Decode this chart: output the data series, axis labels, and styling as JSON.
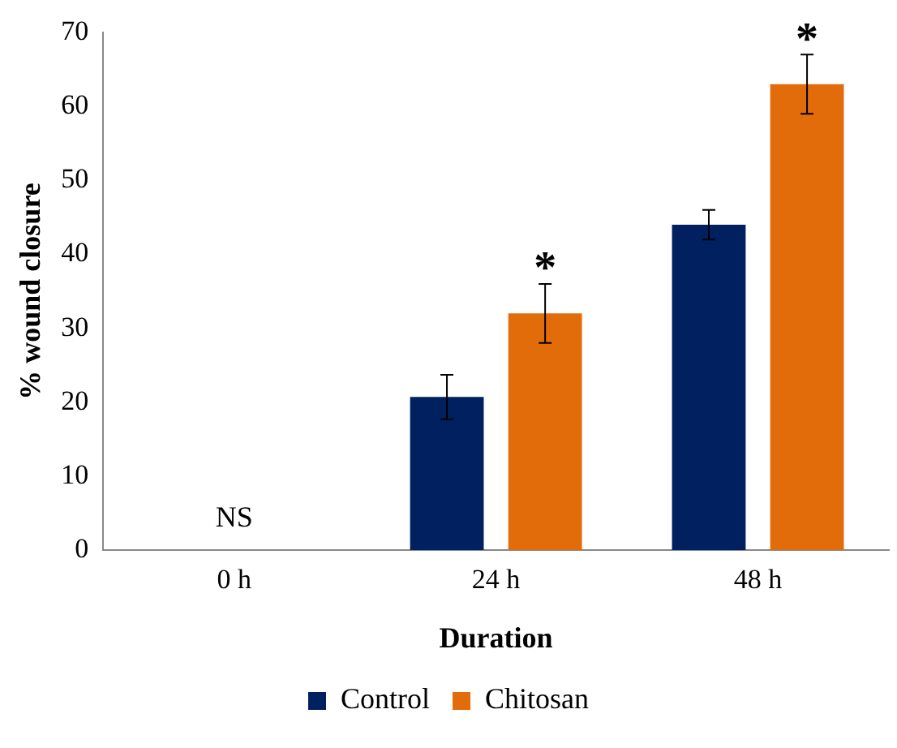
{
  "chart_data": {
    "type": "bar",
    "xlabel": "Duration",
    "ylabel": "% wound closure",
    "categories": [
      "0 h",
      "24 h",
      "48 h"
    ],
    "series": [
      {
        "name": "Control",
        "color": "#002060",
        "values": [
          0,
          20.7,
          44
        ],
        "errors": [
          null,
          3,
          2
        ]
      },
      {
        "name": "Chitosan",
        "color": "#e36c0a",
        "values": [
          0,
          32,
          63
        ],
        "errors": [
          null,
          4,
          4
        ]
      }
    ],
    "ylim": [
      0,
      70
    ],
    "yticks": [
      0,
      10,
      20,
      30,
      40,
      50,
      60,
      70
    ],
    "grid": false,
    "legend": "bottom",
    "annotations": [
      "NS",
      "*",
      "*"
    ]
  }
}
